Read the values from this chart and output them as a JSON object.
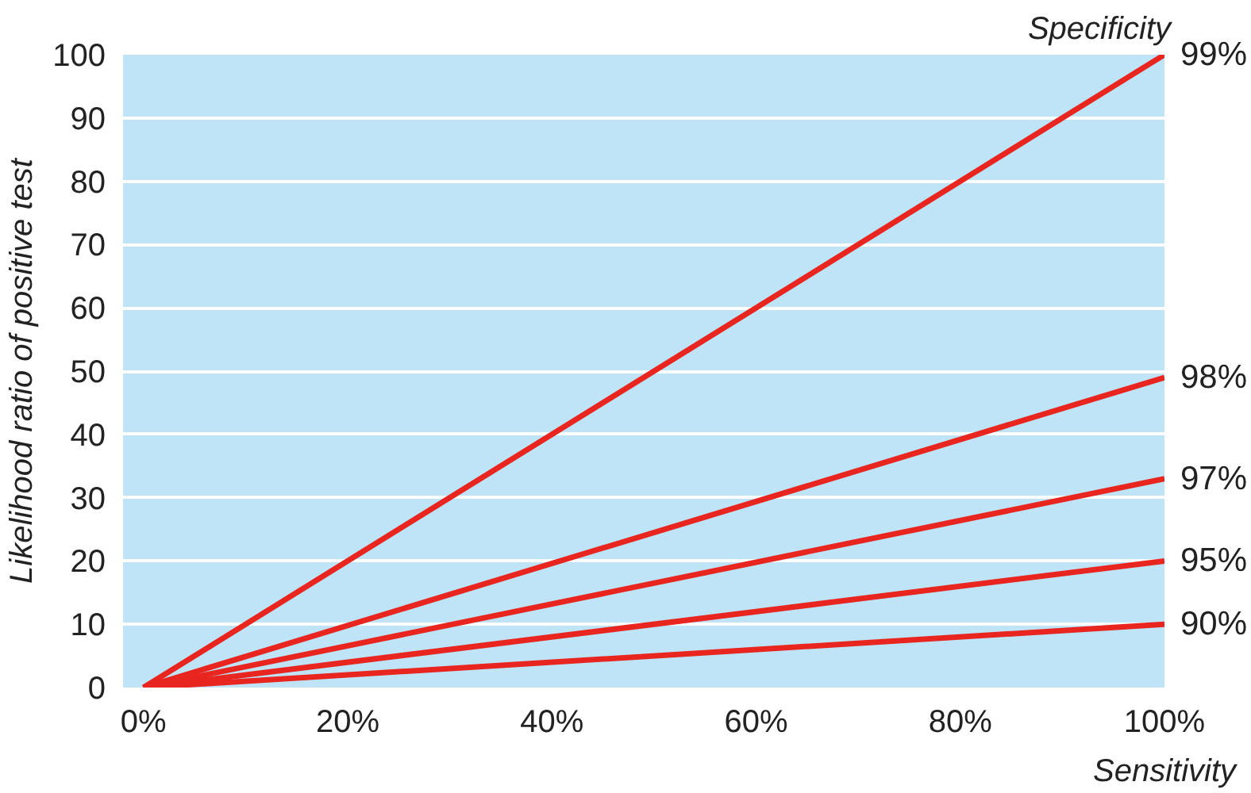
{
  "chart_data": {
    "type": "line",
    "legend_title": "Specificity",
    "xlabel": "Sensitivity",
    "ylabel": "Likelihood ratio of positive test",
    "x": [
      0,
      100
    ],
    "series": [
      {
        "name": "99%",
        "color": "#e8251f",
        "values": [
          0,
          100
        ]
      },
      {
        "name": "98%",
        "color": "#e8251f",
        "values": [
          0,
          49
        ]
      },
      {
        "name": "97%",
        "color": "#e8251f",
        "values": [
          0,
          33
        ]
      },
      {
        "name": "95%",
        "color": "#e8251f",
        "values": [
          0,
          20
        ]
      },
      {
        "name": "90%",
        "color": "#e8251f",
        "values": [
          0,
          10
        ]
      }
    ],
    "xlim": [
      -2,
      100
    ],
    "ylim": [
      0,
      100
    ],
    "xticks": [
      {
        "value": 0,
        "label": "0%"
      },
      {
        "value": 20,
        "label": "20%"
      },
      {
        "value": 40,
        "label": "40%"
      },
      {
        "value": 60,
        "label": "60%"
      },
      {
        "value": 80,
        "label": "80%"
      },
      {
        "value": 100,
        "label": "100%"
      }
    ],
    "yticks": [
      0,
      10,
      20,
      30,
      40,
      50,
      60,
      70,
      80,
      90,
      100
    ],
    "grid": "y",
    "line_style": "solid",
    "marker": "none"
  }
}
